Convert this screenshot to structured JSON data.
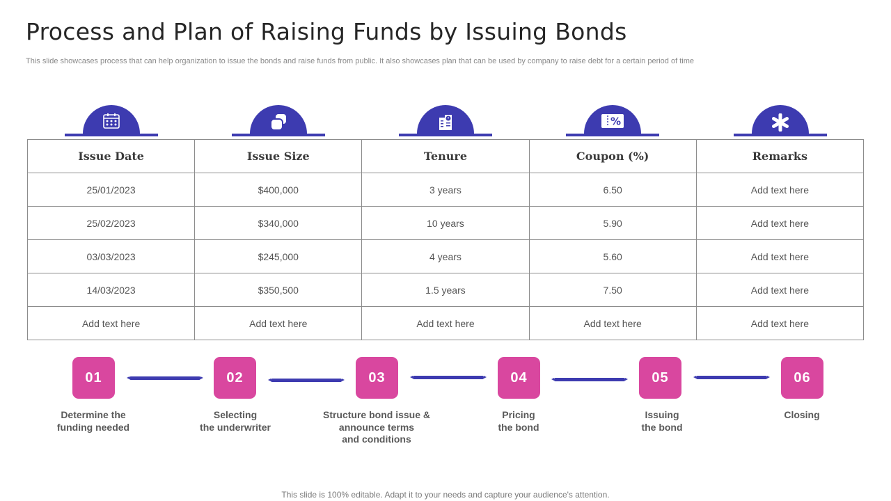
{
  "title": "Process and Plan of Raising Funds by Issuing Bonds",
  "subtitle": "This slide showcases process that can help organization to issue the bonds and raise funds from public. It also showcases plan that can be used by company to raise debt for  a certain period of time",
  "colors": {
    "accent_purple": "#3d3bb0",
    "accent_pink": "#d9479f"
  },
  "table": {
    "columns": [
      {
        "label": "Issue Date",
        "icon": "calendar-icon"
      },
      {
        "label": "Issue Size",
        "icon": "coins-icon"
      },
      {
        "label": "Tenure",
        "icon": "building-clock-icon"
      },
      {
        "label": "Coupon (%)",
        "icon": "discount-coupon-icon"
      },
      {
        "label": "Remarks",
        "icon": "asterisk-icon"
      }
    ],
    "rows": [
      [
        "25/01/2023",
        "$400,000",
        "3 years",
        "6.50",
        "Add text here"
      ],
      [
        "25/02/2023",
        "$340,000",
        "10 years",
        "5.90",
        "Add text here"
      ],
      [
        "03/03/2023",
        "$245,000",
        "4 years",
        "5.60",
        "Add text here"
      ],
      [
        "14/03/2023",
        "$350,500",
        "1.5 years",
        "7.50",
        "Add text here"
      ],
      [
        "Add text here",
        "Add text here",
        "Add text here",
        "Add text here",
        "Add text here"
      ]
    ]
  },
  "steps": [
    {
      "number": "01",
      "label": "Determine the\nfunding needed"
    },
    {
      "number": "02",
      "label": "Selecting\nthe underwriter"
    },
    {
      "number": "03",
      "label": "Structure bond issue &\nannounce terms\nand conditions"
    },
    {
      "number": "04",
      "label": "Pricing\nthe bond"
    },
    {
      "number": "05",
      "label": "Issuing\nthe bond"
    },
    {
      "number": "06",
      "label": "Closing"
    }
  ],
  "footer": "This slide is 100% editable. Adapt it to your needs and capture your audience's attention."
}
